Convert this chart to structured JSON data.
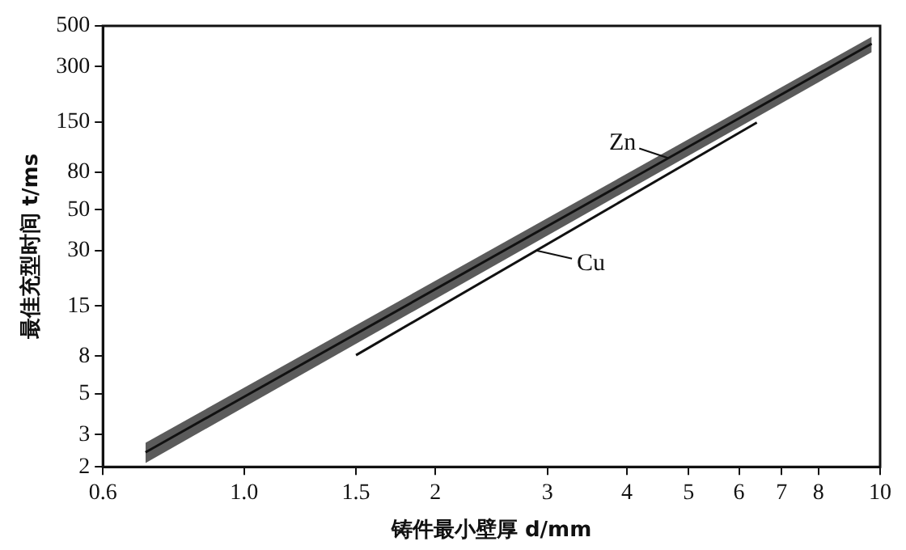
{
  "chart_data": {
    "type": "line",
    "xlabel": "铸件最小壁厚 d/mm",
    "ylabel": "最佳充型时间 t/ms",
    "log": "xy",
    "xlim": [
      0.6,
      10
    ],
    "ylim": [
      2,
      500
    ],
    "xticks": [
      0.6,
      {
        "value": 1,
        "label": "1.0"
      },
      1.5,
      2,
      3,
      4,
      5,
      6,
      7,
      8,
      10
    ],
    "yticks": [
      2,
      3,
      5,
      8,
      15,
      30,
      50,
      80,
      150,
      300,
      500
    ],
    "grid": false,
    "marker": "none",
    "line_style": "solid",
    "series": [
      {
        "name": "Zn",
        "color": "#111111",
        "x": [
          0.7,
          9.7
        ],
        "values": [
          2.4,
          400
        ],
        "lower": [
          2.1,
          360
        ],
        "upper": [
          2.7,
          436
        ]
      },
      {
        "name": "Cu",
        "color": "#111111",
        "x": [
          1.5,
          6.4
        ],
        "values": [
          8.1,
          149
        ]
      }
    ]
  }
}
